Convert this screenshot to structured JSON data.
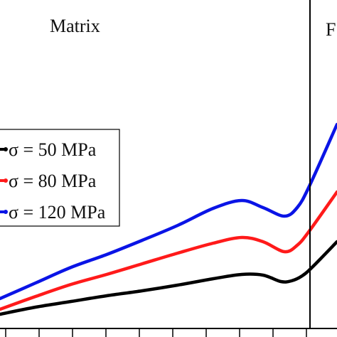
{
  "chart_data": {
    "type": "line",
    "regions": [
      {
        "label": "Matrix"
      },
      {
        "label": "F"
      }
    ],
    "series": [
      {
        "name": "σ = 50 MPa",
        "color": "#000000",
        "points": [
          [
            0,
            442
          ],
          [
            50,
            432
          ],
          [
            100,
            424
          ],
          [
            150,
            416
          ],
          [
            200,
            409
          ],
          [
            250,
            401
          ],
          [
            300,
            392
          ],
          [
            340,
            386
          ],
          [
            370,
            387
          ],
          [
            395,
            396
          ],
          [
            410,
            395
          ],
          [
            425,
            388
          ],
          [
            440,
            375
          ],
          [
            474,
            340
          ]
        ]
      },
      {
        "name": "σ = 80 MPa",
        "color": "#ff1a1a",
        "points": [
          [
            0,
            435
          ],
          [
            50,
            417
          ],
          [
            100,
            400
          ],
          [
            150,
            386
          ],
          [
            200,
            371
          ],
          [
            250,
            356
          ],
          [
            300,
            342
          ],
          [
            340,
            334
          ],
          [
            370,
            340
          ],
          [
            400,
            354
          ],
          [
            418,
            345
          ],
          [
            435,
            325
          ],
          [
            474,
            270
          ]
        ]
      },
      {
        "name": "σ = 120 MPa",
        "color": "#0a14e6",
        "points": [
          [
            0,
            420
          ],
          [
            50,
            398
          ],
          [
            100,
            376
          ],
          [
            150,
            358
          ],
          [
            200,
            338
          ],
          [
            250,
            317
          ],
          [
            300,
            293
          ],
          [
            340,
            282
          ],
          [
            370,
            292
          ],
          [
            400,
            304
          ],
          [
            418,
            292
          ],
          [
            435,
            262
          ],
          [
            474,
            175
          ]
        ]
      }
    ],
    "divider": {
      "color": "#000000"
    },
    "x_ticks": 10
  }
}
